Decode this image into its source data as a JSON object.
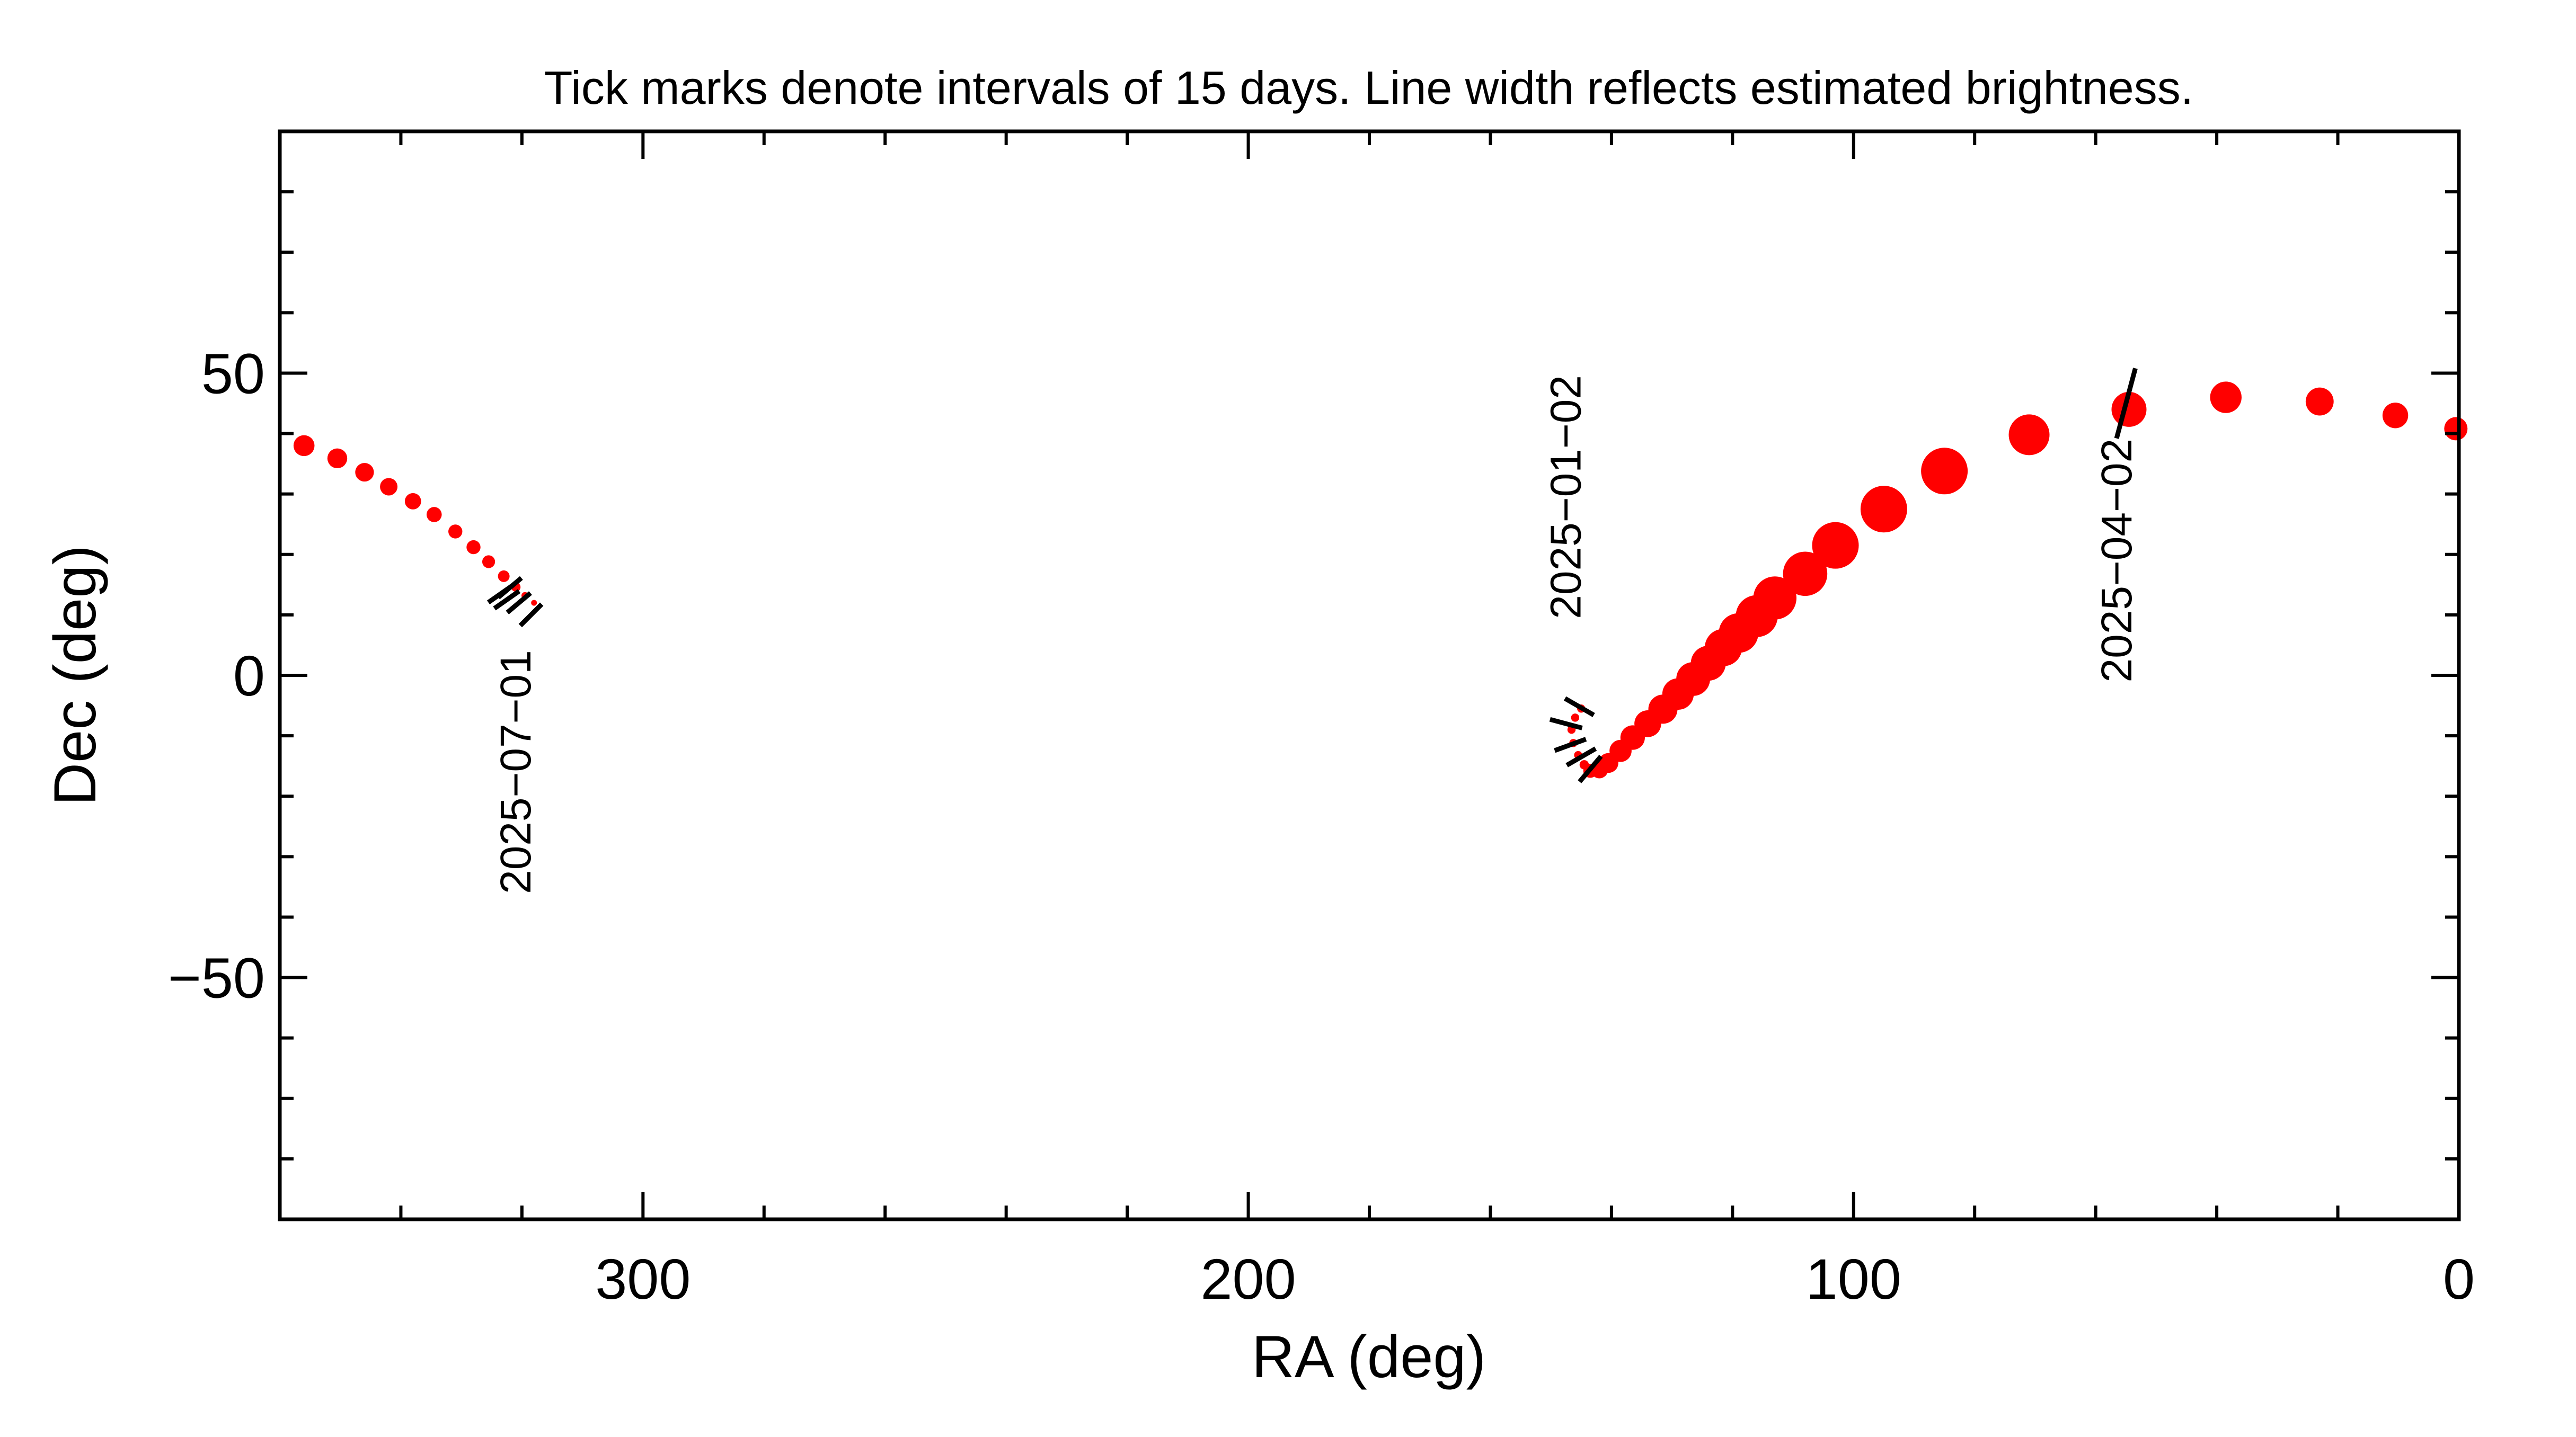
{
  "chart_data": {
    "type": "scatter",
    "title": "Tick marks denote intervals of 15 days.  Line width reflects estimated brightness.",
    "xlabel": "RA (deg)",
    "ylabel": "Dec (deg)",
    "xlim": [
      360,
      0
    ],
    "ylim": [
      -90,
      90
    ],
    "x_reversed": true,
    "grid": false,
    "x_ticks": [
      300,
      200,
      100,
      0
    ],
    "x_tick_labels": [
      "300",
      "200",
      "100",
      "0"
    ],
    "y_ticks": [
      50,
      0,
      -50
    ],
    "y_tick_labels": [
      "50",
      "0",
      "−50"
    ],
    "marker_color": "#ff0000",
    "tick_color": "#000000",
    "series": [
      {
        "points": [
          {
            "ra": 0.5,
            "dec": 40.8,
            "size": 1.0
          },
          {
            "ra": 10.5,
            "dec": 43.0,
            "size": 1.1
          },
          {
            "ra": 23,
            "dec": 45.3,
            "size": 1.2
          },
          {
            "ra": 38.5,
            "dec": 46.0,
            "size": 1.35
          },
          {
            "ra": 54.5,
            "dec": 44.0,
            "size": 1.5
          },
          {
            "ra": 71,
            "dec": 39.8,
            "size": 1.75
          },
          {
            "ra": 85,
            "dec": 33.8,
            "size": 2.0
          },
          {
            "ra": 95,
            "dec": 27.5,
            "size": 2.0
          },
          {
            "ra": 103,
            "dec": 21.5,
            "size": 2.0
          },
          {
            "ra": 108,
            "dec": 16.8,
            "size": 1.9
          },
          {
            "ra": 113,
            "dec": 12.8,
            "size": 1.85
          },
          {
            "ra": 116,
            "dec": 9.8,
            "size": 1.8
          },
          {
            "ra": 119,
            "dec": 7.0,
            "size": 1.7
          },
          {
            "ra": 121.5,
            "dec": 4.6,
            "size": 1.6
          },
          {
            "ra": 124,
            "dec": 2.0,
            "size": 1.5
          },
          {
            "ra": 126.5,
            "dec": -0.6,
            "size": 1.45
          },
          {
            "ra": 129,
            "dec": -3.1,
            "size": 1.35
          },
          {
            "ra": 131.5,
            "dec": -5.6,
            "size": 1.25
          },
          {
            "ra": 134,
            "dec": -8.0,
            "size": 1.15
          },
          {
            "ra": 136.5,
            "dec": -10.3,
            "size": 1.05
          },
          {
            "ra": 138.5,
            "dec": -12.5,
            "size": 0.95
          },
          {
            "ra": 140.5,
            "dec": -14.5,
            "size": 0.85
          },
          {
            "ra": 142,
            "dec": -15.6,
            "size": 0.75
          },
          {
            "ra": 143.5,
            "dec": -15.8,
            "size": 0.6
          },
          {
            "ra": 144.5,
            "dec": -14.8,
            "size": 0.4
          },
          {
            "ra": 145.5,
            "dec": -13.2,
            "size": 0.35
          },
          {
            "ra": 146.3,
            "dec": -11.2,
            "size": 0.35
          },
          {
            "ra": 146.6,
            "dec": -9.0,
            "size": 0.35
          },
          {
            "ra": 146.0,
            "dec": -7.0,
            "size": 0.35
          },
          {
            "ra": 145.0,
            "dec": -5.5,
            "size": 0.35
          },
          {
            "ra": 318,
            "dec": 12.0,
            "size": 0.25
          },
          {
            "ra": 319.5,
            "dec": 13.2,
            "size": 0.3
          },
          {
            "ra": 321,
            "dec": 14.6,
            "size": 0.4
          },
          {
            "ra": 323,
            "dec": 16.4,
            "size": 0.5
          },
          {
            "ra": 325.5,
            "dec": 18.8,
            "size": 0.55
          },
          {
            "ra": 328,
            "dec": 21.2,
            "size": 0.6
          },
          {
            "ra": 331,
            "dec": 23.8,
            "size": 0.6
          },
          {
            "ra": 334.5,
            "dec": 26.6,
            "size": 0.65
          },
          {
            "ra": 338,
            "dec": 28.8,
            "size": 0.7
          },
          {
            "ra": 342,
            "dec": 31.2,
            "size": 0.75
          },
          {
            "ra": 346,
            "dec": 33.6,
            "size": 0.8
          },
          {
            "ra": 350.5,
            "dec": 35.9,
            "size": 0.85
          },
          {
            "ra": 356,
            "dec": 38.0,
            "size": 0.9
          }
        ]
      }
    ],
    "tick_marks": [
      {
        "ra": 55,
        "dec": 45,
        "angle": 75,
        "length": 12
      },
      {
        "ra": 145.3,
        "dec": -5.2,
        "angle": -30,
        "length": 5.5
      },
      {
        "ra": 147.5,
        "dec": -8.0,
        "angle": -15,
        "length": 5.5
      },
      {
        "ra": 146.8,
        "dec": -11.5,
        "angle": 20,
        "length": 5.5
      },
      {
        "ra": 145.0,
        "dec": -13.5,
        "angle": 30,
        "length": 5.5
      },
      {
        "ra": 143.5,
        "dec": -15.5,
        "angle": 50,
        "length": 5.5
      },
      {
        "ra": 323.5,
        "dec": 13.5,
        "angle": 35,
        "length": 5
      },
      {
        "ra": 322.5,
        "dec": 12.5,
        "angle": 35,
        "length": 5
      },
      {
        "ra": 322.0,
        "dec": 14.5,
        "angle": 40,
        "length": 5
      },
      {
        "ra": 320.5,
        "dec": 12.0,
        "angle": 40,
        "length": 5
      },
      {
        "ra": 318.5,
        "dec": 10.0,
        "angle": 45,
        "length": 5
      }
    ],
    "annotations": [
      {
        "text": "2025−01−02",
        "ra": 147,
        "dec": 29.5
      },
      {
        "text": "2025−04−02",
        "ra": 56,
        "dec": 19
      },
      {
        "text": "2025−07−01",
        "ra": 320.5,
        "dec": -16
      }
    ]
  }
}
